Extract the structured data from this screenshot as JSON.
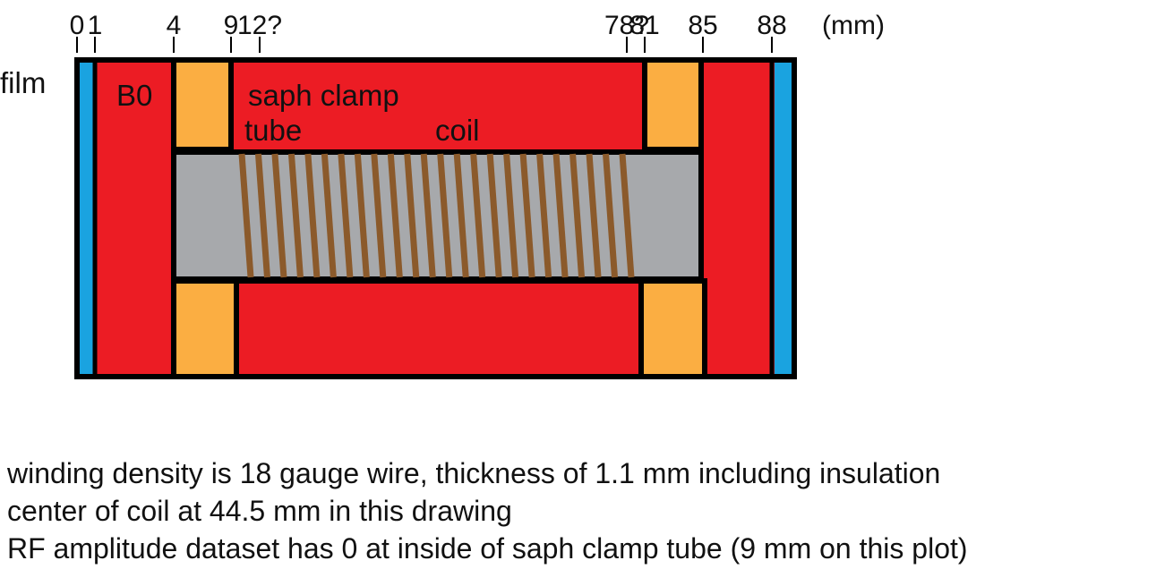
{
  "colors": {
    "film": "#1aa3e0",
    "magnet": "#ec1c24",
    "clamp": "#fbae42",
    "tube": "#a7a9ac",
    "coil_wire": "#8b5a2b",
    "outline": "#000000"
  },
  "scale": {
    "unit_label": "(mm)",
    "ticks": [
      {
        "value": 0,
        "label": "0"
      },
      {
        "value": 1,
        "label": "1"
      },
      {
        "value": 4,
        "label": "4"
      },
      {
        "value": 9,
        "label": "9"
      },
      {
        "value": 12,
        "label": "12?"
      },
      {
        "value": 78,
        "label": "78?"
      },
      {
        "value": 81,
        "label": "81"
      },
      {
        "value": 85,
        "label": "85"
      },
      {
        "value": 88,
        "label": "88"
      }
    ]
  },
  "labels": {
    "film": "film",
    "b0": "B0",
    "saph_clamp": "saph clamp",
    "tube": "tube",
    "coil": "coil"
  },
  "coil": {
    "turns": 24
  },
  "notes": [
    "winding density is 18 gauge wire, thickness of 1.1 mm including insulation",
    "center of coil at 44.5 mm in this drawing",
    "RF amplitude dataset has 0 at inside of saph clamp tube (9 mm on this plot)"
  ]
}
